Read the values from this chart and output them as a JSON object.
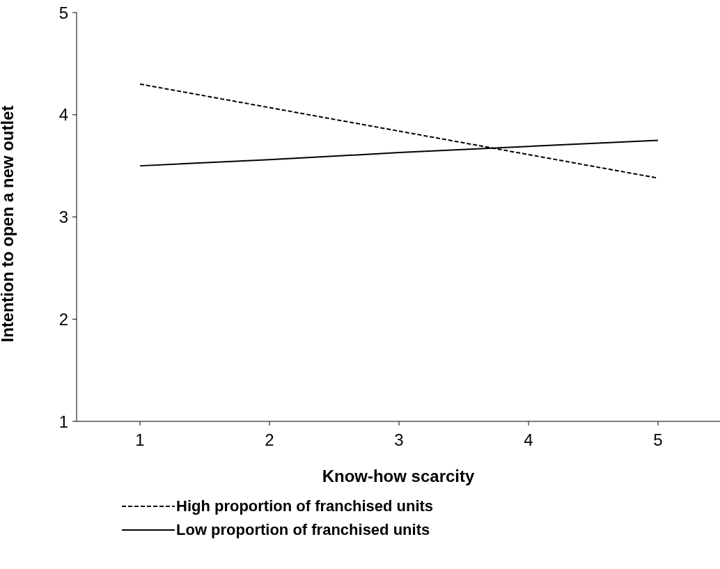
{
  "chart_data": {
    "type": "line",
    "xlabel": "Know-how scarcity",
    "ylabel": "Intention to open a new outlet",
    "categories": [
      "1",
      "2",
      "3",
      "4",
      "5"
    ],
    "series": [
      {
        "name": "High proportion of franchised units",
        "color": "#000000",
        "line_style": "dashed",
        "values": [
          4.3,
          4.07,
          3.84,
          3.61,
          3.38
        ]
      },
      {
        "name": "Low proportion of franchised units",
        "color": "#000000",
        "line_style": "solid",
        "values": [
          3.5,
          3.56,
          3.63,
          3.69,
          3.75
        ]
      }
    ],
    "ylim": [
      1,
      5
    ],
    "yticks": [
      1,
      2,
      3,
      4,
      5
    ],
    "grid": false,
    "legend": "bottom",
    "marker": "none"
  }
}
